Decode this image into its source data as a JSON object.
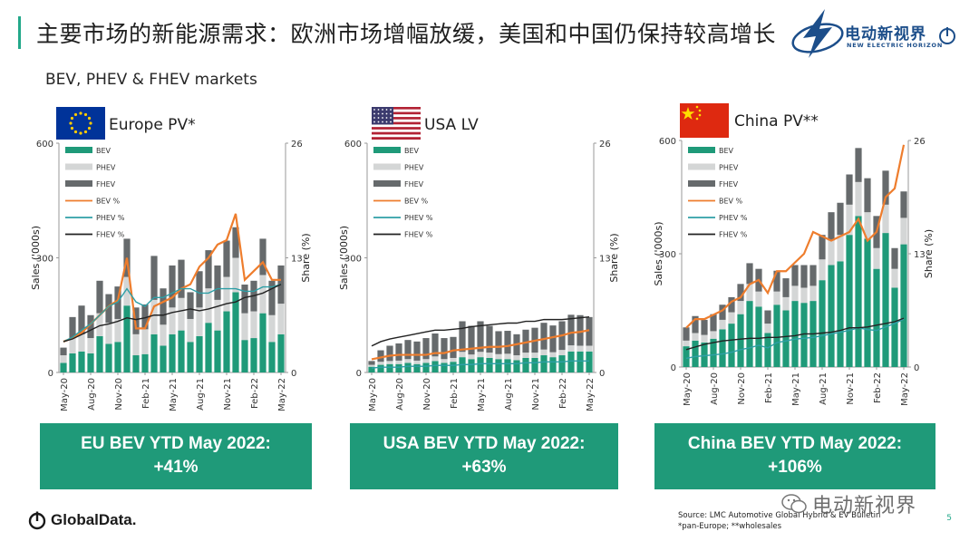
{
  "header": {
    "title": "主要市场的新能源需求：欧洲市场增幅放缓，美国和中国仍保持较高增长",
    "subtitle": "BEV, PHEV & FHEV markets"
  },
  "logo": {
    "cn": "电动新视界",
    "en": "NEW ELECTRIC HORIZON"
  },
  "footer": {
    "brand": "GlobalData.",
    "source_line1": "Source: LMC Automotive Global Hybrid & EV Bulletin",
    "source_line2": "*pan-Europe; **wholesales",
    "watermark": "电动新视界",
    "page_number": "5"
  },
  "colors": {
    "bev": "#1f9a79",
    "phev": "#d4d6d6",
    "fhev": "#666a6c",
    "bev_share": "#ee7d2d",
    "phev_share": "#2e9fa6",
    "fhev_share": "#222222",
    "box": "#1f9a79"
  },
  "panels": [
    {
      "region": "Europe PV*",
      "flag": "eu-flag-icon",
      "ytd_line1": "EU BEV YTD May 2022:",
      "ytd_line2": "+41%"
    },
    {
      "region": "USA LV",
      "flag": "us-flag-icon",
      "ytd_line1": "USA BEV YTD May 2022:",
      "ytd_line2": "+63%"
    },
    {
      "region": "China PV**",
      "flag": "cn-flag-icon",
      "ytd_line1": "China BEV YTD May 2022:",
      "ytd_line2": "+106%"
    }
  ],
  "chart_data": [
    {
      "type": "bar",
      "title": "Europe PV*",
      "stacked": true,
      "categories": [
        "May-20",
        "Jun-20",
        "Jul-20",
        "Aug-20",
        "Sep-20",
        "Oct-20",
        "Nov-20",
        "Dec-20",
        "Jan-21",
        "Feb-21",
        "Mar-21",
        "Apr-21",
        "May-21",
        "Jun-21",
        "Jul-21",
        "Aug-21",
        "Sep-21",
        "Oct-21",
        "Nov-21",
        "Dec-21",
        "Jan-22",
        "Feb-22",
        "Mar-22",
        "Apr-22",
        "May-22"
      ],
      "tick_labels": [
        "May-20",
        "Aug-20",
        "Nov-20",
        "Feb-21",
        "May-21",
        "Aug-21",
        "Nov-21",
        "Feb-22",
        "May-22"
      ],
      "ylabel": "Sales ('000s)",
      "y2label": "Share (%)",
      "ylim": [
        0,
        600
      ],
      "y2lim": [
        0,
        26
      ],
      "yticks": [
        0,
        300,
        600
      ],
      "y2ticks": [
        0,
        13,
        26
      ],
      "legend": "top-left",
      "series": [
        {
          "name": "BEV",
          "kind": "bar",
          "values": [
            25,
            50,
            55,
            50,
            95,
            75,
            80,
            175,
            45,
            48,
            100,
            70,
            100,
            110,
            80,
            95,
            130,
            110,
            160,
            210,
            85,
            90,
            155,
            80,
            100
          ]
        },
        {
          "name": "PHEV",
          "kind": "bar",
          "values": [
            20,
            40,
            45,
            40,
            60,
            55,
            60,
            75,
            55,
            65,
            90,
            55,
            70,
            85,
            60,
            75,
            90,
            80,
            90,
            90,
            70,
            70,
            100,
            70,
            80
          ]
        },
        {
          "name": "FHEV",
          "kind": "bar",
          "values": [
            20,
            55,
            75,
            60,
            85,
            75,
            85,
            100,
            70,
            65,
            115,
            95,
            110,
            100,
            70,
            95,
            100,
            90,
            95,
            80,
            75,
            80,
            95,
            90,
            100
          ]
        },
        {
          "name": "BEV %",
          "kind": "line",
          "values": [
            3.5,
            3.9,
            4.5,
            5.5,
            6.5,
            7.5,
            8.2,
            13,
            5,
            5,
            7.5,
            8,
            8.5,
            9.5,
            10,
            12,
            13,
            14.5,
            15,
            18,
            10.5,
            11.5,
            12.5,
            10.5,
            10.5
          ]
        },
        {
          "name": "PHEV %",
          "kind": "line",
          "values": [
            3.5,
            4,
            4.8,
            5.5,
            6.5,
            7.5,
            8,
            9.5,
            8,
            7.5,
            8.5,
            8.5,
            9,
            9.5,
            9.5,
            9,
            9,
            9.5,
            9.5,
            9.5,
            9.2,
            9.2,
            9.7,
            9.7,
            10
          ]
        },
        {
          "name": "FHEV %",
          "kind": "line",
          "values": [
            3.5,
            3.8,
            4.3,
            4.8,
            5.3,
            5.5,
            5.8,
            6.2,
            6,
            6.2,
            6.5,
            6.5,
            6.8,
            7,
            7.2,
            7,
            7.2,
            7.5,
            7.8,
            8,
            8.5,
            8.7,
            9,
            9.5,
            10
          ]
        }
      ]
    },
    {
      "type": "bar",
      "title": "USA LV",
      "stacked": true,
      "categories": [
        "May-20",
        "Jun-20",
        "Jul-20",
        "Aug-20",
        "Sep-20",
        "Oct-20",
        "Nov-20",
        "Dec-20",
        "Jan-21",
        "Feb-21",
        "Mar-21",
        "Apr-21",
        "May-21",
        "Jun-21",
        "Jul-21",
        "Aug-21",
        "Sep-21",
        "Oct-21",
        "Nov-21",
        "Dec-21",
        "Jan-22",
        "Feb-22",
        "Mar-22",
        "Apr-22",
        "May-22"
      ],
      "tick_labels": [
        "May-20",
        "Aug-20",
        "Nov-20",
        "Feb-21",
        "May-21",
        "Aug-21",
        "Nov-21",
        "Feb-22",
        "May-22"
      ],
      "ylabel": "Sales ('000s)",
      "y2label": "Share (%)",
      "ylim": [
        0,
        600
      ],
      "y2lim": [
        0,
        26
      ],
      "yticks": [
        0,
        300,
        600
      ],
      "y2ticks": [
        0,
        13,
        26
      ],
      "legend": "top-left",
      "series": [
        {
          "name": "BEV",
          "kind": "bar",
          "values": [
            15,
            20,
            22,
            22,
            25,
            22,
            25,
            30,
            25,
            28,
            40,
            35,
            40,
            38,
            35,
            35,
            32,
            38,
            38,
            45,
            40,
            45,
            55,
            55,
            55
          ]
        },
        {
          "name": "PHEV",
          "kind": "bar",
          "values": [
            5,
            8,
            8,
            9,
            10,
            9,
            10,
            12,
            10,
            10,
            14,
            12,
            14,
            14,
            13,
            14,
            13,
            14,
            14,
            15,
            13,
            14,
            16,
            15,
            15
          ]
        },
        {
          "name": "FHEV",
          "kind": "bar",
          "values": [
            10,
            30,
            40,
            45,
            50,
            50,
            55,
            60,
            55,
            55,
            80,
            75,
            80,
            70,
            60,
            60,
            55,
            60,
            65,
            70,
            70,
            75,
            80,
            80,
            75
          ]
        },
        {
          "name": "BEV %",
          "kind": "line",
          "values": [
            1.5,
            1.7,
            1.9,
            2,
            2,
            2,
            2,
            2.2,
            2.2,
            2.5,
            2.6,
            2.7,
            2.8,
            2.9,
            2.9,
            3,
            3.2,
            3.4,
            3.6,
            3.8,
            4,
            4.2,
            4.5,
            4.6,
            4.8
          ]
        },
        {
          "name": "PHEV %",
          "kind": "line",
          "values": [
            0.5,
            0.6,
            0.6,
            0.6,
            0.7,
            0.7,
            0.7,
            0.8,
            0.8,
            0.8,
            0.9,
            0.9,
            1,
            1,
            1,
            1,
            1,
            1.1,
            1.1,
            1.2,
            1.2,
            1.2,
            1.3,
            1.3,
            1.3
          ]
        },
        {
          "name": "FHEV %",
          "kind": "line",
          "values": [
            3,
            3.5,
            3.8,
            4,
            4.2,
            4.4,
            4.6,
            4.8,
            4.8,
            4.9,
            5,
            5.2,
            5.3,
            5.4,
            5.5,
            5.6,
            5.6,
            5.8,
            5.8,
            6,
            6,
            6,
            6.1,
            6.2,
            6.3
          ]
        }
      ]
    },
    {
      "type": "bar",
      "title": "China PV**",
      "stacked": true,
      "categories": [
        "May-20",
        "Jun-20",
        "Jul-20",
        "Aug-20",
        "Sep-20",
        "Oct-20",
        "Nov-20",
        "Dec-20",
        "Jan-21",
        "Feb-21",
        "Mar-21",
        "Apr-21",
        "May-21",
        "Jun-21",
        "Jul-21",
        "Aug-21",
        "Sep-21",
        "Oct-21",
        "Nov-21",
        "Dec-21",
        "Jan-22",
        "Feb-22",
        "Mar-22",
        "Apr-22",
        "May-22"
      ],
      "tick_labels": [
        "May-20",
        "Aug-20",
        "Nov-20",
        "Feb-21",
        "May-21",
        "Aug-21",
        "Nov-21",
        "Feb-22",
        "May-22"
      ],
      "ylabel": "Sales ('000s)",
      "y2label": "Share (%)",
      "ylim": [
        0,
        600
      ],
      "y2lim": [
        0,
        26
      ],
      "yticks": [
        0,
        300,
        600
      ],
      "y2ticks": [
        0,
        13,
        26
      ],
      "legend": "top-left",
      "series": [
        {
          "name": "BEV",
          "kind": "bar",
          "values": [
            55,
            70,
            65,
            75,
            100,
            115,
            140,
            175,
            160,
            90,
            165,
            150,
            175,
            170,
            175,
            230,
            270,
            280,
            350,
            400,
            340,
            260,
            355,
            210,
            325
          ]
        },
        {
          "name": "PHEV",
          "kind": "bar",
          "values": [
            15,
            20,
            20,
            20,
            25,
            30,
            35,
            45,
            40,
            25,
            35,
            35,
            40,
            40,
            40,
            55,
            65,
            70,
            80,
            90,
            70,
            55,
            75,
            50,
            70
          ]
        },
        {
          "name": "FHEV",
          "kind": "bar",
          "values": [
            35,
            45,
            40,
            45,
            40,
            40,
            45,
            55,
            60,
            35,
            55,
            50,
            55,
            60,
            55,
            65,
            75,
            85,
            80,
            90,
            90,
            85,
            90,
            55,
            70
          ]
        },
        {
          "name": "BEV %",
          "kind": "line",
          "values": [
            4.5,
            5.5,
            5.5,
            6,
            6.5,
            7.5,
            8,
            9.5,
            10,
            8.5,
            11,
            11,
            12,
            13,
            15.5,
            15,
            14.5,
            15,
            15.5,
            17,
            14.5,
            15.5,
            19.5,
            20.5,
            25.5
          ]
        },
        {
          "name": "PHEV %",
          "kind": "line",
          "values": [
            1,
            1.2,
            1.3,
            1.4,
            1.5,
            1.7,
            2,
            2.2,
            2.5,
            2.2,
            2.8,
            3,
            3.2,
            3.3,
            3.4,
            3.6,
            3.8,
            4,
            4.2,
            4.5,
            4.3,
            4.2,
            4.6,
            5,
            5.5
          ]
        },
        {
          "name": "FHEV %",
          "kind": "line",
          "values": [
            2,
            2.3,
            2.6,
            2.8,
            3,
            3.1,
            3.2,
            3.3,
            3.3,
            3.4,
            3.4,
            3.5,
            3.6,
            3.8,
            3.8,
            3.9,
            4,
            4.2,
            4.5,
            4.5,
            4.6,
            4.8,
            5,
            5.2,
            5.6
          ]
        }
      ]
    }
  ]
}
